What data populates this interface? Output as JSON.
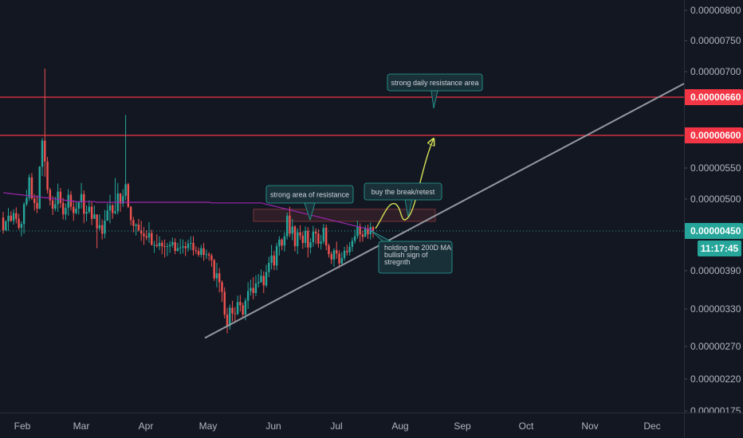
{
  "chart_data": {
    "type": "candlestick",
    "x_axis": {
      "ticks": [
        "Feb",
        "Mar",
        "Apr",
        "May",
        "Jun",
        "Jul",
        "Aug",
        "Sep",
        "Oct",
        "Nov",
        "Dec"
      ]
    },
    "y_axis": {
      "ticks": [
        "0.00000800",
        "0.00000750",
        "0.00000700",
        "0.00000600",
        "0.00000550",
        "0.00000500",
        "0.00000390",
        "0.00000330",
        "0.00000270",
        "0.00000220",
        "0.00000175"
      ],
      "ylim": [
        1.75e-06,
        8e-06
      ]
    },
    "last_price": {
      "label": "0.00000450",
      "value": 4.5e-06,
      "countdown": "11:17:45",
      "color": "#26a69a"
    },
    "resistance_lines": [
      {
        "label": "0.00000660",
        "value": 6.6e-06,
        "color": "#f23645"
      },
      {
        "label": "0.00000600",
        "value": 6e-06,
        "color": "#f23645"
      }
    ],
    "ma_200": {
      "name": "200D MA",
      "color": "#9c27b0"
    },
    "trendline": {
      "from": [
        "May",
        2.9e-06
      ],
      "to": [
        "Dec",
        6.7e-06
      ],
      "color": "#9598a1"
    },
    "projection": {
      "color": "#d4e157"
    },
    "annotations": [
      {
        "text": [
          "strong daily resistance area"
        ]
      },
      {
        "text": [
          "strong area of resistance"
        ]
      },
      {
        "text": [
          "buy the break/retest"
        ]
      },
      {
        "text": [
          "holding the 200D MA",
          "bullish sign of",
          "stregnth"
        ]
      }
    ],
    "colors": {
      "up": "#26a69a",
      "down": "#ef5350",
      "background": "#131722",
      "callout_fill": "#1a3038",
      "callout_stroke": "#26a69a"
    },
    "candles": [
      [
        4.71e-06,
        4.51e-06,
        4.8e-06,
        4.46e-06
      ],
      [
        4.51e-06,
        4.65e-06,
        4.67e-06,
        4.5e-06
      ],
      [
        4.65e-06,
        4.74e-06,
        4.86e-06,
        4.5e-06
      ],
      [
        4.74e-06,
        4.66e-06,
        4.81e-06,
        4.64e-06
      ],
      [
        4.66e-06,
        4.78e-06,
        4.84e-06,
        4.6e-06
      ],
      [
        4.78e-06,
        4.69e-06,
        4.87e-06,
        4.62e-06
      ],
      [
        4.69e-06,
        4.55e-06,
        4.77e-06,
        4.52e-06
      ],
      [
        4.55e-06,
        4.61e-06,
        4.65e-06,
        4.42e-06
      ],
      [
        4.61e-06,
        4.92e-06,
        4.95e-06,
        4.46e-06
      ],
      [
        4.92e-06,
        5.02e-06,
        5.15e-06,
        4.89e-06
      ],
      [
        5.02e-06,
        5.35e-06,
        5.4e-06,
        4.97e-06
      ],
      [
        5.35e-06,
        5.01e-06,
        5.42e-06,
        4.99e-06
      ],
      [
        5.01e-06,
        4.94e-06,
        5.08e-06,
        4.82e-06
      ],
      [
        4.94e-06,
        4.85e-06,
        5.06e-06,
        4.78e-06
      ],
      [
        4.85e-06,
        5.52e-06,
        5.53e-06,
        4.84e-06
      ],
      [
        5.52e-06,
        5.92e-06,
        5.96e-06,
        5.37e-06
      ],
      [
        5.92e-06,
        5.6e-06,
        7.05e-06,
        5.36e-06
      ],
      [
        5.6e-06,
        5.15e-06,
        5.67e-06,
        5.09e-06
      ],
      [
        5.15e-06,
        4.98e-06,
        5.18e-06,
        4.9e-06
      ],
      [
        4.98e-06,
        4.85e-06,
        5.05e-06,
        4.75e-06
      ],
      [
        4.85e-06,
        4.92e-06,
        5.04e-06,
        4.81e-06
      ],
      [
        4.92e-06,
        5.12e-06,
        5.25e-06,
        4.8e-06
      ],
      [
        5.12e-06,
        4.94e-06,
        5.18e-06,
        4.86e-06
      ],
      [
        4.94e-06,
        4.76e-06,
        5.02e-06,
        4.68e-06
      ],
      [
        4.76e-06,
        4.86e-06,
        4.93e-06,
        4.67e-06
      ],
      [
        4.86e-06,
        5.07e-06,
        5.16e-06,
        4.74e-06
      ],
      [
        5.07e-06,
        4.88e-06,
        5.13e-06,
        4.82e-06
      ],
      [
        4.88e-06,
        4.78e-06,
        4.98e-06,
        4.66e-06
      ],
      [
        4.78e-06,
        4.85e-06,
        4.97e-06,
        4.76e-06
      ],
      [
        4.85e-06,
        4.95e-06,
        4.97e-06,
        4.76e-06
      ],
      [
        4.95e-06,
        5.08e-06,
        5.26e-06,
        4.85e-06
      ],
      [
        5.08e-06,
        4.77e-06,
        5.14e-06,
        4.62e-06
      ],
      [
        4.77e-06,
        4.8e-06,
        4.9e-06,
        4.65e-06
      ],
      [
        4.8e-06,
        4.88e-06,
        4.98e-06,
        4.77e-06
      ],
      [
        4.88e-06,
        4.69e-06,
        4.96e-06,
        4.59e-06
      ],
      [
        4.69e-06,
        4.76e-06,
        4.9e-06,
        4.69e-06
      ],
      [
        4.76e-06,
        4.54e-06,
        4.76e-06,
        4.24e-06
      ],
      [
        4.54e-06,
        4.59e-06,
        4.76e-06,
        4.51e-06
      ],
      [
        4.59e-06,
        4.46e-06,
        4.68e-06,
        4.37e-06
      ],
      [
        4.46e-06,
        4.66e-06,
        4.83e-06,
        4.39e-06
      ],
      [
        4.66e-06,
        4.82e-06,
        4.93e-06,
        4.67e-06
      ],
      [
        4.82e-06,
        4.9e-06,
        5.07e-06,
        4.62e-06
      ],
      [
        4.9e-06,
        4.78e-06,
        4.93e-06,
        4.69e-06
      ],
      [
        4.78e-06,
        4.81e-06,
        5.34e-06,
        4.76e-06
      ],
      [
        4.81e-06,
        5.09e-06,
        5.26e-06,
        4.76e-06
      ],
      [
        5.09e-06,
        4.93e-06,
        5.1e-06,
        4.8e-06
      ],
      [
        4.93e-06,
        5.05e-06,
        5.16e-06,
        4.88e-06
      ],
      [
        5.05e-06,
        5.24e-06,
        6.32e-06,
        4.98e-06
      ],
      [
        5.24e-06,
        4.88e-06,
        5.26e-06,
        4.86e-06
      ],
      [
        4.88e-06,
        4.67e-06,
        4.89e-06,
        4.59e-06
      ],
      [
        4.67e-06,
        4.58e-06,
        4.72e-06,
        4.48e-06
      ],
      [
        4.58e-06,
        4.6e-06,
        4.62e-06,
        4.43e-06
      ],
      [
        4.6e-06,
        4.51e-06,
        4.69e-06,
        4.49e-06
      ],
      [
        4.51e-06,
        4.46e-06,
        4.66e-06,
        4.35e-06
      ],
      [
        4.46e-06,
        4.42e-06,
        4.56e-06,
        4.29e-06
      ],
      [
        4.42e-06,
        4.4e-06,
        4.51e-06,
        4.36e-06
      ],
      [
        4.4e-06,
        4.47e-06,
        4.64e-06,
        4.32e-06
      ],
      [
        4.47e-06,
        4.29e-06,
        4.52e-06,
        4.28e-06
      ],
      [
        4.29e-06,
        4.29e-06,
        4.35e-06,
        4.17e-06
      ],
      [
        4.29e-06,
        4.27e-06,
        4.45e-06,
        4.25e-06
      ],
      [
        4.27e-06,
        4.32e-06,
        4.42e-06,
        4.21e-06
      ],
      [
        4.32e-06,
        4.27e-06,
        4.36e-06,
        4.15e-06
      ],
      [
        4.27e-06,
        4.26e-06,
        4.37e-06,
        4.1e-06
      ],
      [
        4.26e-06,
        4.27e-06,
        4.32e-06,
        4.12e-06
      ],
      [
        4.27e-06,
        4.29e-06,
        4.35e-06,
        4.17e-06
      ],
      [
        4.29e-06,
        4.33e-06,
        4.4e-06,
        4.25e-06
      ],
      [
        4.33e-06,
        4.2e-06,
        4.39e-06,
        4.15e-06
      ],
      [
        4.2e-06,
        4.24e-06,
        4.32e-06,
        4.19e-06
      ],
      [
        4.24e-06,
        4.25e-06,
        4.38e-06,
        4.15e-06
      ],
      [
        4.25e-06,
        4.27e-06,
        4.37e-06,
        4.16e-06
      ],
      [
        4.27e-06,
        4.24e-06,
        4.34e-06,
        4.12e-06
      ],
      [
        4.24e-06,
        4.31e-06,
        4.37e-06,
        4.19e-06
      ],
      [
        4.31e-06,
        4.32e-06,
        4.42e-06,
        4.21e-06
      ],
      [
        4.32e-06,
        4.21e-06,
        4.42e-06,
        4.13e-06
      ],
      [
        4.21e-06,
        4.2e-06,
        4.27e-06,
        4.15e-06
      ],
      [
        4.2e-06,
        4.14e-06,
        4.25e-06,
        4.11e-06
      ],
      [
        4.14e-06,
        4.24e-06,
        4.29e-06,
        4.1e-06
      ],
      [
        4.24e-06,
        4.14e-06,
        4.32e-06,
        4.05e-06
      ],
      [
        4.14e-06,
        4.15e-06,
        4.22e-06,
        4.08e-06
      ],
      [
        4.15e-06,
        4.13e-06,
        4.18e-06,
        4.05e-06
      ],
      [
        4.13e-06,
        4.06e-06,
        4.16e-06,
        3.96e-06
      ],
      [
        4.06e-06,
        3.78e-06,
        4.08e-06,
        3.74e-06
      ],
      [
        3.78e-06,
        3.86e-06,
        4.02e-06,
        3.64e-06
      ],
      [
        3.86e-06,
        3.72e-06,
        3.94e-06,
        3.56e-06
      ],
      [
        3.72e-06,
        3.57e-06,
        3.75e-06,
        3.41e-06
      ],
      [
        3.57e-06,
        3.21e-06,
        3.64e-06,
        3.15e-06
      ],
      [
        3.21e-06,
        3.03e-06,
        3.32e-06,
        2.91e-06
      ],
      [
        3.03e-06,
        3.32e-06,
        3.37e-06,
        2.97e-06
      ],
      [
        3.32e-06,
        3.23e-06,
        3.43e-06,
        3.1e-06
      ],
      [
        3.23e-06,
        3.22e-06,
        3.33e-06,
        3.08e-06
      ],
      [
        3.22e-06,
        3.41e-06,
        3.51e-06,
        3.2e-06
      ],
      [
        3.41e-06,
        3.36e-06,
        3.52e-06,
        3.26e-06
      ],
      [
        3.36e-06,
        3.21e-06,
        3.4e-06,
        3.15e-06
      ],
      [
        3.21e-06,
        3.43e-06,
        3.47e-06,
        3.12e-06
      ],
      [
        3.43e-06,
        3.58e-06,
        3.72e-06,
        3.3e-06
      ],
      [
        3.58e-06,
        3.63e-06,
        3.76e-06,
        3.51e-06
      ],
      [
        3.63e-06,
        3.55e-06,
        3.8e-06,
        3.45e-06
      ],
      [
        3.55e-06,
        3.7e-06,
        3.83e-06,
        3.5e-06
      ],
      [
        3.7e-06,
        3.72e-06,
        3.85e-06,
        3.64e-06
      ],
      [
        3.72e-06,
        3.82e-06,
        3.92e-06,
        3.71e-06
      ],
      [
        3.82e-06,
        3.67e-06,
        3.89e-06,
        3.55e-06
      ],
      [
        3.67e-06,
        3.88e-06,
        3.99e-06,
        3.64e-06
      ],
      [
        3.88e-06,
        4.02e-06,
        4.11e-06,
        3.8e-06
      ],
      [
        4.02e-06,
        4.13e-06,
        4.29e-06,
        3.92e-06
      ],
      [
        4.13e-06,
        3.98e-06,
        4.2e-06,
        3.91e-06
      ],
      [
        3.98e-06,
        4.27e-06,
        4.32e-06,
        3.91e-06
      ],
      [
        4.27e-06,
        4.37e-06,
        4.42e-06,
        4.13e-06
      ],
      [
        4.37e-06,
        4.28e-06,
        4.39e-06,
        4.21e-06
      ],
      [
        4.28e-06,
        4.42e-06,
        4.48e-06,
        4.19e-06
      ],
      [
        4.42e-06,
        4.74e-06,
        4.79e-06,
        4.37e-06
      ],
      [
        4.74e-06,
        4.46e-06,
        4.88e-06,
        4.41e-06
      ],
      [
        4.46e-06,
        4.57e-06,
        4.69e-06,
        4.36e-06
      ],
      [
        4.57e-06,
        4.27e-06,
        4.59e-06,
        4.19e-06
      ],
      [
        4.27e-06,
        4.48e-06,
        4.54e-06,
        4.15e-06
      ],
      [
        4.48e-06,
        4.43e-06,
        4.59e-06,
        4.37e-06
      ],
      [
        4.43e-06,
        4.32e-06,
        4.49e-06,
        4.23e-06
      ],
      [
        4.32e-06,
        4.5e-06,
        4.57e-06,
        4.25e-06
      ],
      [
        4.5e-06,
        4.25e-06,
        4.56e-06,
        4.1e-06
      ],
      [
        4.25e-06,
        4.33e-06,
        4.39e-06,
        4.16e-06
      ],
      [
        4.33e-06,
        4.49e-06,
        4.58e-06,
        4.26e-06
      ],
      [
        4.49e-06,
        4.46e-06,
        4.54e-06,
        4.3e-06
      ],
      [
        4.46e-06,
        4.31e-06,
        4.53e-06,
        4.25e-06
      ],
      [
        4.31e-06,
        4.34e-06,
        4.44e-06,
        4.22e-06
      ],
      [
        4.34e-06,
        4.55e-06,
        4.61e-06,
        4.3e-06
      ],
      [
        4.55e-06,
        4.28e-06,
        4.6e-06,
        4.21e-06
      ],
      [
        4.28e-06,
        4.15e-06,
        4.31e-06,
        4.1e-06
      ],
      [
        4.15e-06,
        4.07e-06,
        4.19e-06,
        4e-06
      ],
      [
        4.07e-06,
        4.21e-06,
        4.24e-06,
        3.96e-06
      ],
      [
        4.21e-06,
        4.16e-06,
        4.34e-06,
        4.08e-06
      ],
      [
        4.16e-06,
        4.01e-06,
        4.21e-06,
        3.94e-06
      ],
      [
        4.01e-06,
        4.09e-06,
        4.18e-06,
        3.98e-06
      ],
      [
        4.09e-06,
        4.2e-06,
        4.26e-06,
        4.05e-06
      ],
      [
        4.2e-06,
        4.18e-06,
        4.29e-06,
        4.13e-06
      ],
      [
        4.18e-06,
        4.26e-06,
        4.33e-06,
        4.13e-06
      ],
      [
        4.26e-06,
        4.35e-06,
        4.4e-06,
        4.19e-06
      ],
      [
        4.35e-06,
        4.42e-06,
        4.52e-06,
        4.31e-06
      ],
      [
        4.42e-06,
        4.57e-06,
        4.66e-06,
        4.38e-06
      ],
      [
        4.57e-06,
        4.45e-06,
        4.62e-06,
        4.33e-06
      ],
      [
        4.45e-06,
        4.41e-06,
        4.51e-06,
        4.34e-06
      ],
      [
        4.41e-06,
        4.54e-06,
        4.59e-06,
        4.41e-06
      ],
      [
        4.54e-06,
        4.45e-06,
        4.6e-06,
        4.38e-06
      ],
      [
        4.45e-06,
        4.56e-06,
        4.63e-06,
        4.37e-06
      ],
      [
        4.56e-06,
        4.5e-06,
        4.58e-06,
        4.4e-06
      ]
    ],
    "ma_values": [
      5.1e-06,
      5.1e-06,
      5.09e-06,
      5.09e-06,
      5.08e-06,
      5.08e-06,
      5.07e-06,
      5.07e-06,
      5.06e-06,
      5.06e-06,
      5.05e-06,
      5.05e-06,
      5.04e-06,
      5.04e-06,
      5.03e-06,
      5.03e-06,
      5.02e-06,
      5.02e-06,
      5.01e-06,
      5.01e-06,
      5e-06,
      5e-06,
      4.99e-06,
      4.99e-06,
      4.98e-06,
      4.98e-06,
      4.97e-06,
      4.97e-06,
      4.96e-06,
      4.96e-06,
      4.96e-06,
      4.96e-06,
      4.96e-06,
      4.96e-06,
      4.96e-06,
      4.96e-06,
      4.95e-06,
      4.95e-06,
      4.95e-06,
      4.95e-06,
      4.95e-06,
      4.95e-06,
      4.95e-06,
      4.95e-06,
      4.95e-06,
      4.95e-06,
      4.95e-06,
      4.95e-06,
      4.95e-06,
      4.95e-06,
      4.95e-06,
      4.95e-06,
      4.95e-06,
      4.95e-06,
      4.95e-06,
      4.95e-06,
      4.95e-06,
      4.95e-06,
      4.95e-06,
      4.95e-06,
      4.95e-06,
      4.95e-06,
      4.95e-06,
      4.95e-06,
      4.95e-06,
      4.95e-06,
      4.95e-06,
      4.95e-06,
      4.95e-06,
      4.95e-06,
      4.95e-06,
      4.95e-06,
      4.95e-06,
      4.95e-06,
      4.95e-06,
      4.95e-06,
      4.95e-06,
      4.95e-06,
      4.95e-06,
      4.95e-06,
      4.94e-06,
      4.94e-06,
      4.94e-06,
      4.94e-06,
      4.94e-06,
      4.94e-06,
      4.94e-06,
      4.94e-06,
      4.94e-06,
      4.94e-06,
      4.94e-06,
      4.94e-06,
      4.94e-06,
      4.94e-06,
      4.94e-06,
      4.94e-06,
      4.94e-06,
      4.94e-06,
      4.94e-06,
      4.94e-06,
      4.93e-06,
      4.92e-06,
      4.91e-06,
      4.9e-06,
      4.89e-06,
      4.88e-06,
      4.87e-06,
      4.86e-06,
      4.85e-06,
      4.84e-06,
      4.83e-06,
      4.82e-06,
      4.81e-06,
      4.8e-06,
      4.79e-06,
      4.78e-06,
      4.77e-06,
      4.76e-06,
      4.75e-06,
      4.74e-06,
      4.73e-06,
      4.72e-06,
      4.71e-06,
      4.7e-06,
      4.69e-06,
      4.68e-06,
      4.67e-06,
      4.66e-06,
      4.65e-06,
      4.64e-06,
      4.63e-06,
      4.62e-06,
      4.61e-06,
      4.6e-06,
      4.59e-06,
      4.58e-06,
      4.57e-06,
      4.56e-06,
      4.55e-06,
      4.54e-06,
      4.53e-06,
      4.52e-06,
      4.51e-06
    ]
  }
}
